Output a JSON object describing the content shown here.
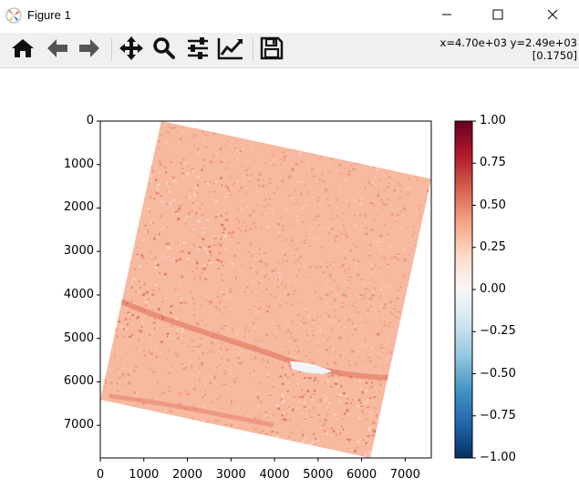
{
  "window": {
    "title": "Figure 1",
    "minimize": "minimize",
    "maximize": "maximize",
    "close": "close"
  },
  "toolbar": {
    "buttons": [
      {
        "icon": "home-icon",
        "label": "Home"
      },
      {
        "icon": "back-arrow-icon",
        "label": "Back"
      },
      {
        "icon": "forward-arrow-icon",
        "label": "Forward"
      },
      {
        "icon": "pan-icon",
        "label": "Pan"
      },
      {
        "icon": "zoom-icon",
        "label": "Zoom"
      },
      {
        "icon": "subplots-icon",
        "label": "Subplots"
      },
      {
        "icon": "edit-axis-icon",
        "label": "Customize"
      },
      {
        "icon": "save-icon",
        "label": "Save"
      }
    ],
    "coord_readout": "x=4.70e+03 y=2.49e+03",
    "value_readout": "[0.1750]"
  },
  "chart_data": {
    "type": "heatmap",
    "title": "",
    "xlabel": "",
    "ylabel": "",
    "xlim": [
      0,
      7600
    ],
    "ylim": [
      7750,
      0
    ],
    "x_ticks": [
      0,
      1000,
      2000,
      3000,
      4000,
      5000,
      6000,
      7000
    ],
    "y_ticks": [
      0,
      1000,
      2000,
      3000,
      4000,
      5000,
      6000,
      7000
    ],
    "x_tick_labels": [
      "0",
      "1000",
      "2000",
      "3000",
      "4000",
      "5000",
      "6000",
      "7000"
    ],
    "y_tick_labels": [
      "0",
      "1000",
      "2000",
      "3000",
      "4000",
      "5000",
      "6000",
      "7000"
    ],
    "image_corners": [
      [
        1400,
        0
      ],
      [
        7600,
        1330
      ],
      [
        6200,
        7750
      ],
      [
        0,
        6410
      ]
    ],
    "colormap": "RdBu_r",
    "colorbar": {
      "range": [
        -1.0,
        1.0
      ],
      "ticks": [
        1.0,
        0.75,
        0.5,
        0.25,
        0.0,
        -0.25,
        -0.5,
        -0.75,
        -1.0
      ],
      "tick_labels": [
        "1.00",
        "0.75",
        "0.50",
        "0.25",
        "0.00",
        "−0.25",
        "−0.50",
        "−0.75",
        "−1.00"
      ],
      "colors": [
        "#67001f",
        "#b2182b",
        "#d6604d",
        "#f4a582",
        "#fddbc7",
        "#f7f7f7",
        "#d1e5f0",
        "#92c5de",
        "#4393c3",
        "#2166ac",
        "#053061"
      ]
    },
    "dominant_value": 0.175,
    "colors": {
      "base": "#f7b9a0",
      "dense": "#e2735b",
      "light": "#fcd9c8",
      "nodata": "#f0f5f9"
    }
  }
}
